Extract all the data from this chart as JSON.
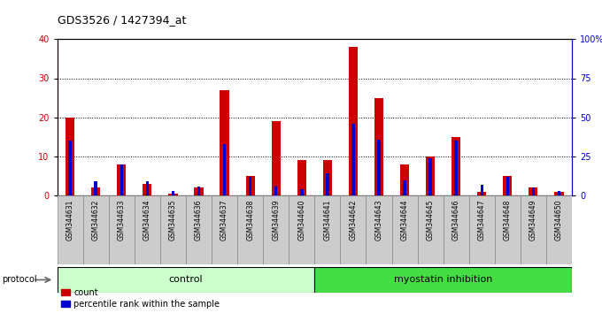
{
  "title": "GDS3526 / 1427394_at",
  "samples": [
    "GSM344631",
    "GSM344632",
    "GSM344633",
    "GSM344634",
    "GSM344635",
    "GSM344636",
    "GSM344637",
    "GSM344638",
    "GSM344639",
    "GSM344640",
    "GSM344641",
    "GSM344642",
    "GSM344643",
    "GSM344644",
    "GSM344645",
    "GSM344646",
    "GSM344647",
    "GSM344648",
    "GSM344649",
    "GSM344650"
  ],
  "count": [
    20,
    2,
    8,
    3,
    0.5,
    2,
    27,
    5,
    19,
    9,
    9,
    38,
    25,
    8,
    10,
    15,
    1,
    5,
    2,
    1
  ],
  "percentile": [
    35,
    9,
    20,
    9,
    3,
    6,
    33,
    12,
    6,
    4,
    14,
    46,
    36,
    10,
    24,
    35,
    7,
    12,
    5,
    3
  ],
  "control_count": 10,
  "control_label": "control",
  "treatment_label": "myostatin inhibition",
  "protocol_label": "protocol",
  "legend_count": "count",
  "legend_percentile": "percentile rank within the sample",
  "count_color": "#cc0000",
  "percentile_color": "#0000cc",
  "control_bg": "#ccffcc",
  "treatment_bg": "#44dd44",
  "bar_bg": "#cccccc",
  "plot_bg": "#ffffff",
  "ylim_left": [
    0,
    40
  ],
  "ylim_right": [
    0,
    100
  ],
  "yticks_left": [
    0,
    10,
    20,
    30,
    40
  ],
  "yticks_right": [
    0,
    25,
    50,
    75,
    100
  ],
  "ytick_labels_right": [
    "0",
    "25",
    "50",
    "75",
    "100%"
  ]
}
